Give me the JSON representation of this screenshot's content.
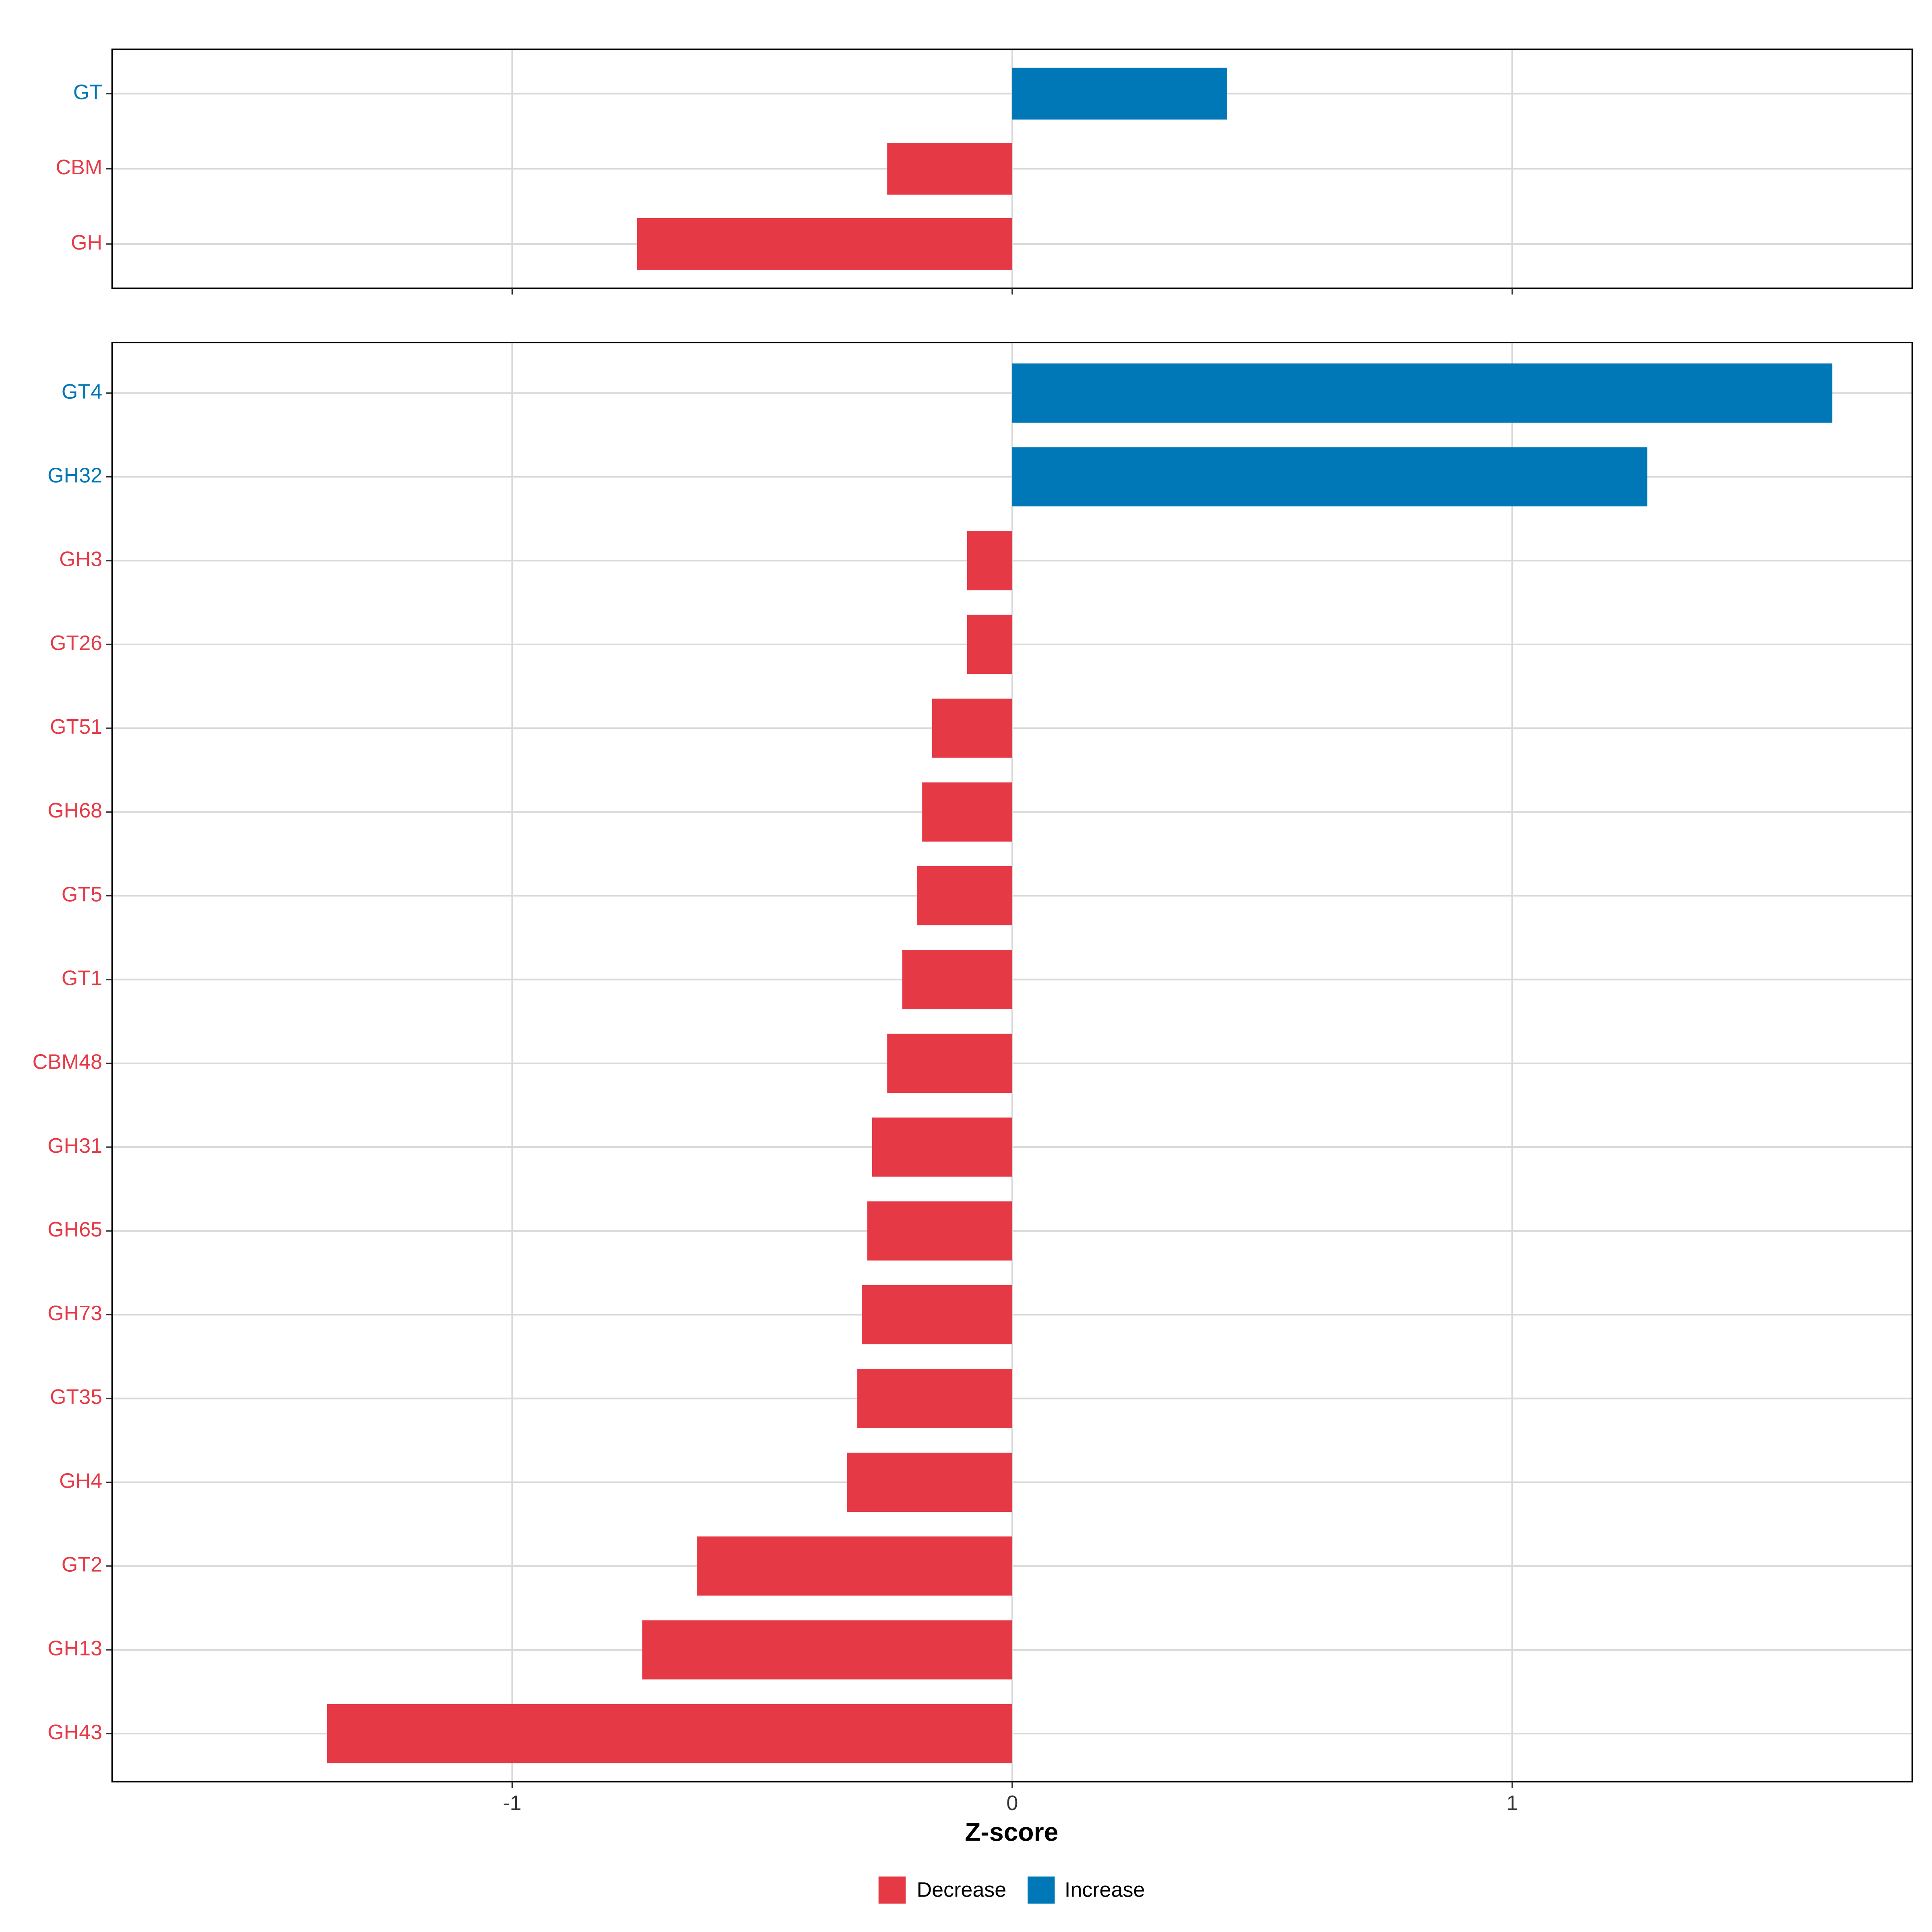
{
  "chart_data": [
    {
      "type": "bar",
      "orientation": "horizontal",
      "panel": "top",
      "categories": [
        "GT",
        "CBM",
        "GH"
      ],
      "values": [
        0.43,
        -0.25,
        -0.75
      ],
      "xlim": [
        -1.8,
        1.8
      ],
      "grid": true
    },
    {
      "type": "bar",
      "orientation": "horizontal",
      "panel": "bottom",
      "categories": [
        "GT4",
        "GH32",
        "GH3",
        "GT26",
        "GT51",
        "GH68",
        "GT5",
        "GT1",
        "CBM48",
        "GH31",
        "GH65",
        "GH73",
        "GT35",
        "GH4",
        "GT2",
        "GH13",
        "GH43"
      ],
      "values": [
        1.64,
        1.27,
        -0.09,
        -0.09,
        -0.16,
        -0.18,
        -0.19,
        -0.22,
        -0.25,
        -0.28,
        -0.29,
        -0.3,
        -0.31,
        -0.33,
        -0.63,
        -0.74,
        -1.37
      ],
      "xlim": [
        -1.8,
        1.8
      ],
      "grid": true
    }
  ],
  "axis": {
    "xlabel": "Z-score",
    "xticks": [
      -1,
      0,
      1
    ],
    "xtick_labels": [
      "-1",
      "0",
      "1"
    ]
  },
  "legend": {
    "position": "bottom",
    "items": [
      {
        "label": "Decrease",
        "color": "#E63946"
      },
      {
        "label": "Increase",
        "color": "#0077B6"
      }
    ]
  }
}
